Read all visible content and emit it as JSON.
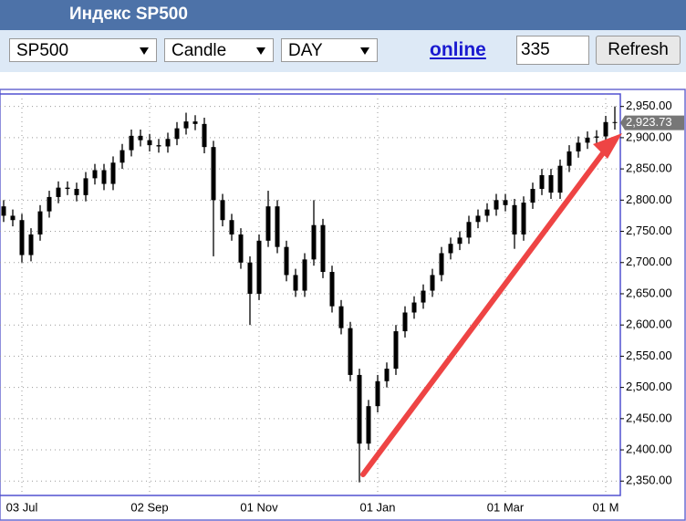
{
  "header": {
    "title": "Индекс SP500"
  },
  "toolbar": {
    "symbol": "SP500",
    "chart_type": "Candle",
    "period": "DAY",
    "link": "online",
    "count": 335,
    "button": "Refresh"
  },
  "chart_data": {
    "type": "candlestick",
    "color": "#000000",
    "grid": true,
    "categories": [
      null,
      null,
      "03 Jul",
      null,
      null,
      null,
      null,
      null,
      null,
      null,
      null,
      null,
      null,
      null,
      null,
      null,
      "02 Sep",
      null,
      null,
      null,
      null,
      null,
      null,
      null,
      null,
      null,
      null,
      null,
      "01 Nov",
      null,
      null,
      null,
      null,
      null,
      null,
      null,
      null,
      null,
      null,
      null,
      null,
      "01 Jan",
      null,
      null,
      null,
      null,
      null,
      null,
      null,
      null,
      null,
      null,
      null,
      null,
      null,
      "01 Mar",
      null,
      null,
      null,
      null,
      null,
      null,
      null,
      null,
      null,
      null,
      "01 M",
      null
    ],
    "open": [
      2790,
      2775,
      2768,
      2712,
      2745,
      2782,
      2805,
      2820,
      2818,
      2808,
      2835,
      2848,
      2826,
      2860,
      2880,
      2903,
      2896,
      2888,
      2886,
      2898,
      2915,
      2926,
      2922,
      2885,
      2800,
      2768,
      2745,
      2700,
      2650,
      2735,
      2790,
      2725,
      2680,
      2655,
      2705,
      2760,
      2685,
      2630,
      2595,
      2520,
      2410,
      2470,
      2510,
      2530,
      2590,
      2620,
      2636,
      2655,
      2680,
      2715,
      2730,
      2740,
      2765,
      2775,
      2785,
      2800,
      2792,
      2745,
      2796,
      2818,
      2840,
      2812,
      2855,
      2878,
      2892,
      2900,
      2902,
      2925
    ],
    "high": [
      2800,
      2785,
      2778,
      2755,
      2792,
      2815,
      2830,
      2830,
      2828,
      2845,
      2858,
      2858,
      2870,
      2890,
      2913,
      2913,
      2906,
      2898,
      2908,
      2925,
      2940,
      2936,
      2932,
      2895,
      2810,
      2778,
      2755,
      2710,
      2745,
      2815,
      2800,
      2735,
      2690,
      2715,
      2800,
      2770,
      2695,
      2640,
      2605,
      2530,
      2480,
      2520,
      2540,
      2600,
      2630,
      2646,
      2665,
      2690,
      2725,
      2740,
      2750,
      2775,
      2785,
      2795,
      2810,
      2810,
      2802,
      2806,
      2828,
      2850,
      2850,
      2865,
      2888,
      2902,
      2910,
      2912,
      2935,
      2950
    ],
    "low": [
      2765,
      2758,
      2700,
      2702,
      2735,
      2772,
      2795,
      2808,
      2798,
      2798,
      2825,
      2816,
      2816,
      2850,
      2870,
      2886,
      2878,
      2876,
      2876,
      2888,
      2905,
      2912,
      2875,
      2710,
      2758,
      2735,
      2690,
      2600,
      2640,
      2725,
      2715,
      2670,
      2645,
      2645,
      2695,
      2675,
      2620,
      2585,
      2510,
      2348,
      2400,
      2460,
      2500,
      2520,
      2580,
      2610,
      2626,
      2645,
      2670,
      2705,
      2720,
      2730,
      2755,
      2765,
      2775,
      2782,
      2722,
      2735,
      2786,
      2808,
      2802,
      2802,
      2845,
      2868,
      2882,
      2890,
      2892,
      2913
    ],
    "close": [
      2775,
      2768,
      2712,
      2745,
      2782,
      2805,
      2820,
      2818,
      2808,
      2835,
      2848,
      2826,
      2860,
      2880,
      2903,
      2896,
      2888,
      2886,
      2898,
      2915,
      2926,
      2922,
      2885,
      2800,
      2768,
      2745,
      2700,
      2650,
      2735,
      2790,
      2725,
      2680,
      2655,
      2705,
      2760,
      2685,
      2630,
      2595,
      2520,
      2410,
      2470,
      2510,
      2530,
      2590,
      2620,
      2636,
      2655,
      2680,
      2715,
      2730,
      2740,
      2765,
      2775,
      2785,
      2800,
      2792,
      2745,
      2796,
      2818,
      2840,
      2812,
      2855,
      2878,
      2892,
      2900,
      2902,
      2925,
      2923.73
    ],
    "ylim": [
      2327,
      2970
    ],
    "yticks": [
      {
        "value": 2350,
        "label": "2,350.00"
      },
      {
        "value": 2400,
        "label": "2,400.00"
      },
      {
        "value": 2450,
        "label": "2,450.00"
      },
      {
        "value": 2500,
        "label": "2,500.00"
      },
      {
        "value": 2550,
        "label": "2,550.00"
      },
      {
        "value": 2600,
        "label": "2,600.00"
      },
      {
        "value": 2650,
        "label": "2,650.00"
      },
      {
        "value": 2700,
        "label": "2,700.00"
      },
      {
        "value": 2750,
        "label": "2,750.00"
      },
      {
        "value": 2800,
        "label": "2,800.00"
      },
      {
        "value": 2850,
        "label": "2,850.00"
      },
      {
        "value": 2900,
        "label": "2,900.00"
      },
      {
        "value": 2950,
        "label": "2,950.00"
      }
    ],
    "last_price": {
      "value": 2923.73,
      "label": "2,923.73"
    }
  }
}
